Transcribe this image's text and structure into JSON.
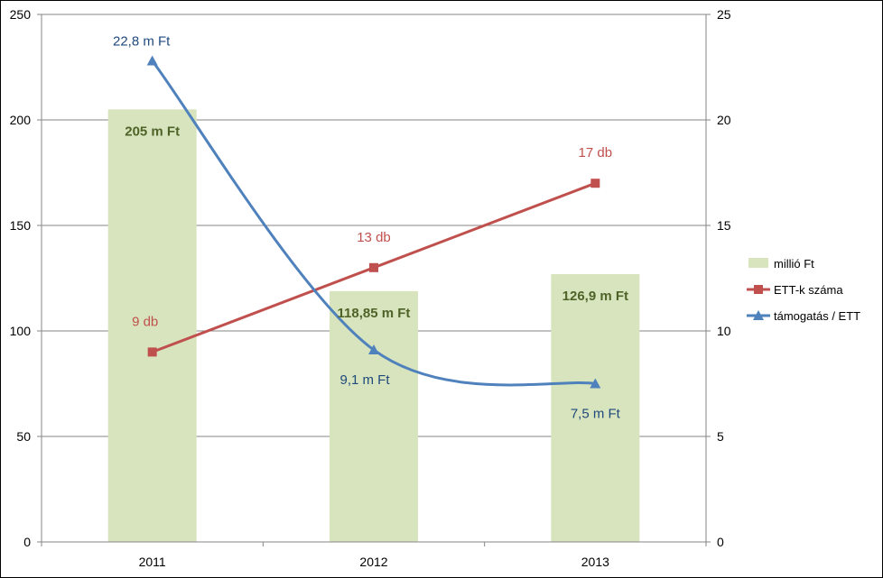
{
  "chart_data": {
    "type": "bar",
    "categories": [
      "2011",
      "2012",
      "2013"
    ],
    "y_left": {
      "min": 0,
      "max": 250,
      "ticks": [
        "0",
        "50",
        "100",
        "150",
        "200",
        "250"
      ]
    },
    "y_right": {
      "min": 0,
      "max": 25,
      "ticks": [
        "0",
        "5",
        "10",
        "15",
        "20",
        "25"
      ]
    },
    "grid": true,
    "legend_position": "right",
    "series": [
      {
        "name": "millió Ft",
        "kind": "bar",
        "axis": "left",
        "color": "#d7e4bd",
        "label_color": "#4f6228",
        "values": [
          205,
          118.85,
          126.9
        ],
        "labels": [
          "205 m Ft",
          "118,85 m Ft",
          "126,9 m Ft"
        ]
      },
      {
        "name": "ETT-k száma",
        "kind": "line",
        "axis": "right",
        "marker": "square",
        "color": "#c0504d",
        "values": [
          9,
          13,
          17
        ],
        "labels": [
          "9 db",
          "13 db",
          "17 db"
        ]
      },
      {
        "name": "támogatás / ETT",
        "kind": "line",
        "axis": "right",
        "marker": "triangle",
        "smooth": true,
        "color": "#4f81bd",
        "label_color": "#1f497d",
        "values": [
          22.8,
          9.1,
          7.5
        ],
        "labels": [
          "22,8 m Ft",
          "9,1 m Ft",
          "7,5 m Ft"
        ]
      }
    ]
  }
}
